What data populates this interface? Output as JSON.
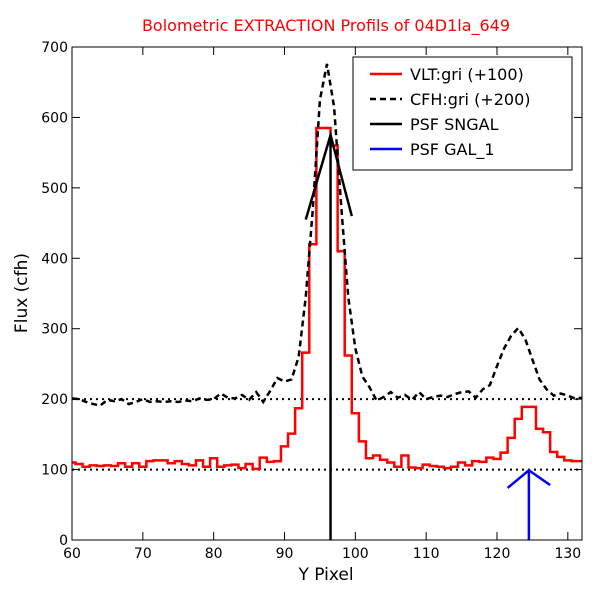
{
  "chart_data": {
    "type": "line",
    "title": "Bolometric EXTRACTION Profils of 04D1la_649",
    "title_color": "#ff0000",
    "xlabel": "Y Pixel",
    "ylabel": "Flux (cfh)",
    "xlim": [
      60,
      132
    ],
    "ylim": [
      0,
      700
    ],
    "x_ticks": [
      60,
      70,
      80,
      90,
      100,
      110,
      120,
      130
    ],
    "y_ticks": [
      0,
      100,
      200,
      300,
      400,
      500,
      600,
      700
    ],
    "grid": false,
    "legend_position": "top-right",
    "reference_lines": [
      {
        "y": 100,
        "style": "dotted",
        "color": "#000000"
      },
      {
        "y": 200,
        "style": "dotted",
        "color": "#000000"
      }
    ],
    "series": [
      {
        "name": "VLT:gri (+100)",
        "color": "#ff0000",
        "style": "steps",
        "x": [
          60,
          61,
          62,
          63,
          64,
          65,
          66,
          67,
          68,
          69,
          70,
          71,
          72,
          73,
          74,
          75,
          76,
          77,
          78,
          79,
          80,
          81,
          82,
          83,
          84,
          85,
          86,
          87,
          88,
          89,
          90,
          91,
          92,
          93,
          94,
          95,
          96,
          97,
          98,
          99,
          100,
          101,
          102,
          103,
          104,
          105,
          106,
          107,
          108,
          109,
          110,
          111,
          112,
          113,
          114,
          115,
          116,
          117,
          118,
          119,
          120,
          121,
          122,
          123,
          124,
          125,
          126,
          127,
          128,
          129,
          130,
          131,
          132
        ],
        "values": [
          110,
          108,
          104,
          106,
          105,
          106,
          105,
          109,
          104,
          109,
          104,
          112,
          113,
          113,
          109,
          112,
          108,
          106,
          113,
          104,
          116,
          104,
          106,
          107,
          102,
          108,
          101,
          117,
          111,
          112,
          133,
          151,
          187,
          266,
          420,
          585,
          585,
          560,
          410,
          262,
          180,
          140,
          116,
          120,
          114,
          110,
          104,
          120,
          103,
          102,
          107,
          105,
          104,
          102,
          104,
          110,
          106,
          112,
          111,
          117,
          115,
          124,
          145,
          172,
          189,
          189,
          158,
          153,
          125,
          118,
          113,
          112,
          112
        ]
      },
      {
        "name": "CFH:gri (+200)",
        "color": "#000000",
        "style": "dashed",
        "x": [
          60,
          61,
          62,
          63,
          64,
          65,
          66,
          67,
          68,
          69,
          70,
          71,
          72,
          73,
          74,
          75,
          76,
          77,
          78,
          79,
          80,
          81,
          82,
          83,
          84,
          85,
          86,
          87,
          88,
          89,
          90,
          91,
          92,
          93,
          94,
          95,
          96,
          97,
          98,
          99,
          100,
          101,
          102,
          103,
          104,
          105,
          106,
          107,
          108,
          109,
          110,
          111,
          112,
          113,
          114,
          115,
          116,
          117,
          118,
          119,
          120,
          121,
          122,
          123,
          124,
          125,
          126,
          127,
          128,
          129,
          130,
          131,
          132
        ],
        "values": [
          201,
          200,
          196,
          193,
          191,
          199,
          197,
          200,
          193,
          196,
          200,
          196,
          197,
          196,
          197,
          196,
          198,
          197,
          201,
          199,
          200,
          208,
          202,
          201,
          206,
          199,
          210,
          196,
          212,
          230,
          225,
          228,
          260,
          345,
          470,
          625,
          676,
          615,
          475,
          345,
          272,
          232,
          217,
          198,
          203,
          210,
          202,
          206,
          199,
          210,
          200,
          203,
          205,
          203,
          207,
          210,
          211,
          202,
          214,
          220,
          247,
          272,
          290,
          301,
          285,
          256,
          228,
          214,
          205,
          208,
          205,
          201,
          202
        ]
      },
      {
        "name": "PSF SNGAL",
        "color": "#000000",
        "style": "solid",
        "arrow": {
          "x": 96.5,
          "y_base": 0,
          "y_tip": 575,
          "head_left": [
            93,
            455
          ],
          "head_right": [
            99.5,
            460
          ]
        }
      },
      {
        "name": "PSF GAL_1",
        "color": "#0000ff",
        "style": "solid",
        "arrow": {
          "x": 124.5,
          "y_base": 0,
          "y_tip": 99,
          "head_left": [
            121.5,
            74
          ],
          "head_right": [
            127.5,
            78
          ]
        }
      }
    ]
  }
}
